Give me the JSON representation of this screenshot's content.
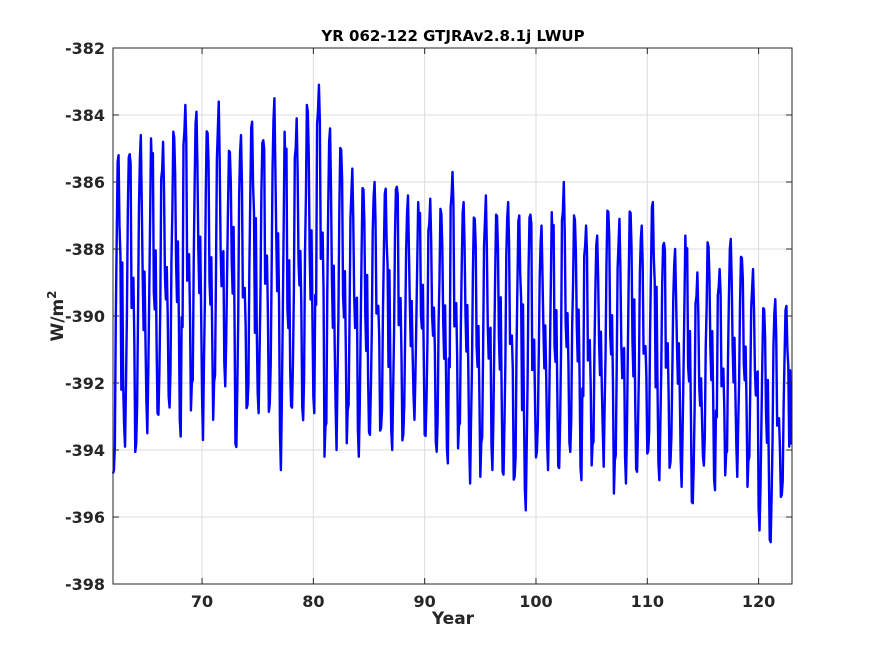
{
  "chart_data": {
    "type": "line",
    "title": "YR 062-122 GTJRAv2.8.1j LWUP",
    "xlabel": "Year",
    "ylabel_base": "W/m",
    "ylabel_sup": "2",
    "xlim": [
      62,
      123
    ],
    "ylim": [
      -398,
      -382
    ],
    "xticks": [
      70,
      80,
      90,
      100,
      110,
      120
    ],
    "yticks": [
      -398,
      -396,
      -394,
      -392,
      -390,
      -388,
      -386,
      -384,
      -382
    ],
    "grid": true,
    "line_color": "#0000ff",
    "series": [
      {
        "name": "",
        "sampling": "monthly",
        "x_start": 62.0,
        "annual_max": [
          -385.2,
          -384.9,
          -384.6,
          -384.7,
          -384.8,
          -384.5,
          -383.7,
          -383.9,
          -384.3,
          -383.6,
          -385.0,
          -384.6,
          -384.2,
          -384.5,
          -383.5,
          -384.5,
          -384.1,
          -383.7,
          -383.1,
          -384.4,
          -384.8,
          -385.6,
          -386.1,
          -386.0,
          -386.2,
          -385.9,
          -386.4,
          -386.6,
          -386.5,
          -386.8,
          -385.7,
          -386.6,
          -386.9,
          -386.4,
          -386.9,
          -386.6,
          -387.0,
          -386.7,
          -387.3,
          -386.9,
          -386.0,
          -387.0,
          -387.3,
          -387.6,
          -386.7,
          -387.1,
          -386.8,
          -387.3,
          -386.6,
          -387.6,
          -388.0,
          -387.6,
          -388.7,
          -387.8,
          -388.6,
          -387.7,
          -388.1,
          -388.6,
          -389.7,
          -389.5,
          -389.7
        ],
        "annual_min": [
          -395.2,
          -393.9,
          -394.3,
          -393.5,
          -393.2,
          -392.9,
          -393.6,
          -393.0,
          -393.7,
          -393.1,
          -392.1,
          -394.1,
          -393.2,
          -392.9,
          -393.1,
          -394.6,
          -393.0,
          -393.3,
          -392.9,
          -394.4,
          -394.0,
          -393.8,
          -394.2,
          -393.7,
          -393.8,
          -394.0,
          -393.9,
          -393.1,
          -393.8,
          -394.2,
          -394.4,
          -394.1,
          -395.0,
          -394.8,
          -394.6,
          -394.9,
          -395.3,
          -395.8,
          -394.4,
          -394.6,
          -394.8,
          -394.2,
          -394.9,
          -394.6,
          -394.5,
          -395.3,
          -395.0,
          -394.8,
          -394.5,
          -394.9,
          -394.7,
          -395.1,
          -395.8,
          -394.6,
          -395.2,
          -394.9,
          -394.8,
          -395.1,
          -396.4,
          -396.9,
          -395.7
        ]
      }
    ]
  }
}
